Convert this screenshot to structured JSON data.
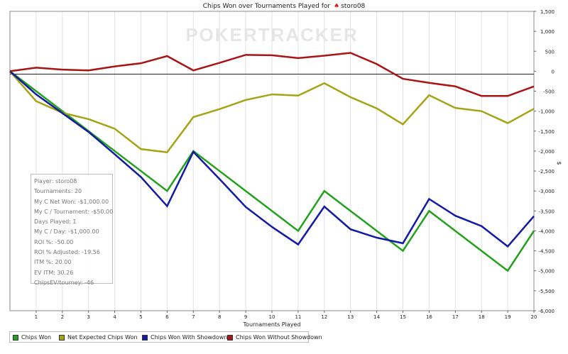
{
  "chart_data": {
    "type": "line",
    "title": "Chips Won over Tournaments Played for",
    "player_name": "storo08",
    "watermark": "POKERTRACKER",
    "xlabel": "Tournaments Played",
    "ylabel": "$",
    "x": [
      0,
      1,
      2,
      3,
      4,
      5,
      6,
      7,
      8,
      9,
      10,
      11,
      12,
      13,
      14,
      15,
      16,
      17,
      18,
      19,
      20
    ],
    "x_ticks": [
      "1",
      "2",
      "3",
      "4",
      "5",
      "6",
      "7",
      "8",
      "9",
      "10",
      "11",
      "12",
      "13",
      "14",
      "15",
      "16",
      "17",
      "18",
      "19",
      "20"
    ],
    "ylim": [
      -6000,
      1500
    ],
    "y_ticks": [
      "1,500",
      "1,000",
      "500",
      "0",
      "-500",
      "-1,000",
      "-1,500",
      "-2,000",
      "-2,500",
      "-3,000",
      "-3,500",
      "-4,000",
      "-4,500",
      "-5,000",
      "-5,500",
      "-6,000"
    ],
    "y_axis_side": "right",
    "grid": {
      "vertical": true,
      "horizontal": false
    },
    "legend_position": "bottom",
    "series": [
      {
        "name": "Chips Won",
        "color": "#22a21c",
        "values": [
          0,
          -500,
          -1000,
          -1500,
          -2000,
          -2500,
          -3000,
          -2000,
          -2500,
          -3000,
          -3500,
          -4000,
          -3000,
          -3500,
          -4000,
          -4500,
          -3500,
          -4000,
          -4500,
          -5000,
          -4000
        ]
      },
      {
        "name": "Net Expected Chips Won",
        "color": "#a4a414",
        "values": [
          0,
          -750,
          -1040,
          -1200,
          -1440,
          -1950,
          -2030,
          -1150,
          -950,
          -720,
          -580,
          -610,
          -300,
          -650,
          -930,
          -1330,
          -600,
          -920,
          -1000,
          -1300,
          -940
        ]
      },
      {
        "name": "Chips Won With Showdown",
        "color": "#121aa6",
        "values": [
          0,
          -580,
          -1050,
          -1520,
          -2080,
          -2650,
          -3380,
          -2020,
          -2700,
          -3400,
          -3900,
          -4340,
          -3390,
          -3960,
          -4170,
          -4310,
          -3200,
          -3620,
          -3880,
          -4390,
          -3630
        ]
      },
      {
        "name": "Chips Won Without Showdown",
        "color": "#aa1414",
        "values": [
          0,
          90,
          40,
          20,
          120,
          200,
          380,
          20,
          210,
          410,
          400,
          330,
          390,
          460,
          180,
          -190,
          -290,
          -380,
          -620,
          -620,
          -380
        ]
      }
    ]
  },
  "stats_box": {
    "lines": [
      "Player: storo08",
      "Tournaments: 20",
      "My C Net Won: -$1,000.00",
      "My C / Tournament: -$50.00",
      "Days Played: 1",
      "My C / Day: -$1,000.00",
      "ROI %: -50.00",
      "ROI % Adjusted: -19.56",
      "ITM %: 20.00",
      "EV ITM: 30.26",
      "ChipsEV/tourney: -46"
    ]
  }
}
